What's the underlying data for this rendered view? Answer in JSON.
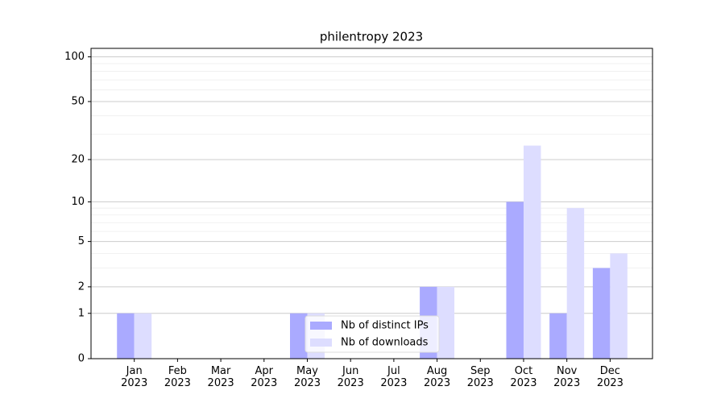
{
  "chart_data": {
    "type": "bar",
    "title": "philentropy 2023",
    "categories": [
      "Jan 2023",
      "Feb 2023",
      "Mar 2023",
      "Apr 2023",
      "May 2023",
      "Jun 2023",
      "Jul 2023",
      "Aug 2023",
      "Sep 2023",
      "Oct 2023",
      "Nov 2023",
      "Dec 2023"
    ],
    "series": [
      {
        "name": "Nb of distinct IPs",
        "color": "#aaaaff",
        "values": [
          1,
          0,
          0,
          0,
          1,
          0,
          0,
          2,
          0,
          10,
          1,
          3
        ]
      },
      {
        "name": "Nb of downloads",
        "color": "#ddddff",
        "values": [
          1,
          0,
          0,
          0,
          1,
          0,
          0,
          2,
          0,
          25,
          9,
          4
        ]
      }
    ],
    "scale": "log1p",
    "ylim": [
      0,
      114
    ],
    "yticks": [
      0,
      1,
      2,
      5,
      10,
      20,
      50,
      100
    ],
    "minor_yticks": [
      3,
      4,
      6,
      7,
      8,
      9,
      30,
      40,
      60,
      70,
      80,
      90
    ],
    "grid": true,
    "legend": "lower center"
  }
}
